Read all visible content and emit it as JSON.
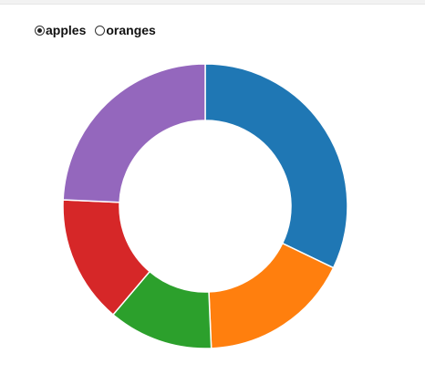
{
  "controls": {
    "options": [
      {
        "label": "apples",
        "checked": true
      },
      {
        "label": "oranges",
        "checked": false
      }
    ]
  },
  "chart_data": {
    "type": "pie",
    "variant": "donut",
    "series": "apples",
    "values": [
      53245,
      28479,
      19697,
      24037,
      40245
    ],
    "colors": [
      "#1f77b4",
      "#ff7f0e",
      "#2ca02c",
      "#d62728",
      "#9467bd"
    ]
  }
}
